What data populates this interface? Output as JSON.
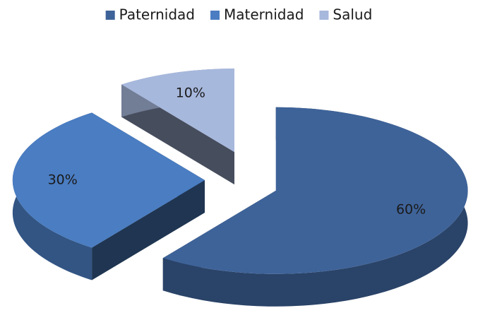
{
  "chart_data": {
    "type": "pie",
    "categories": [
      "Paternidad",
      "Maternidad",
      "Salud"
    ],
    "values": [
      60,
      30,
      10
    ],
    "value_labels": [
      "60%",
      "30%",
      "10%"
    ],
    "colors": [
      "#3e6399",
      "#4a7dc2",
      "#a7b8dd"
    ],
    "legend": "top",
    "explode": true,
    "three_d": true
  }
}
